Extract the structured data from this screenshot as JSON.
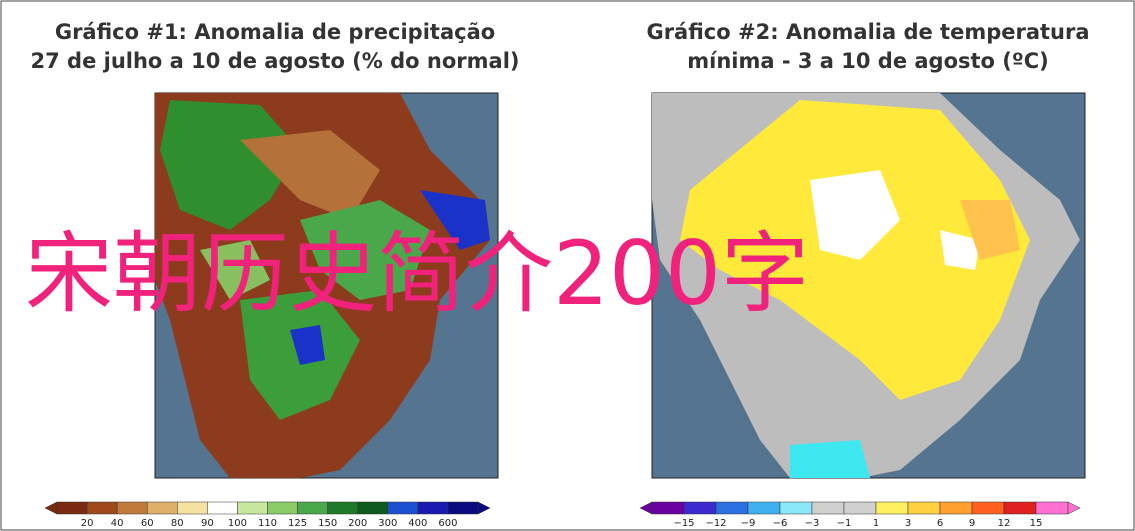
{
  "panels": [
    {
      "title_line1": "Gráfico #1: Anomalia de precipitação",
      "title_line2": "27 de julho a 10 de agosto (% do normal)",
      "colorbar_labels": [
        "20",
        "40",
        "60",
        "80",
        "90",
        "100",
        "110",
        "125",
        "150",
        "200",
        "300",
        "400",
        "600"
      ]
    },
    {
      "title_line1": "Gráfico #2: Anomalia de temperatura",
      "title_line2": "mínima - 3 a 10 de agosto (ºC)",
      "colorbar_labels": [
        "−15",
        "−12",
        "−9",
        "−6",
        "−3",
        "−1",
        "1",
        "3",
        "6",
        "9",
        "12",
        "15"
      ]
    }
  ],
  "overlay_text": "宋朝历史简介200字"
}
